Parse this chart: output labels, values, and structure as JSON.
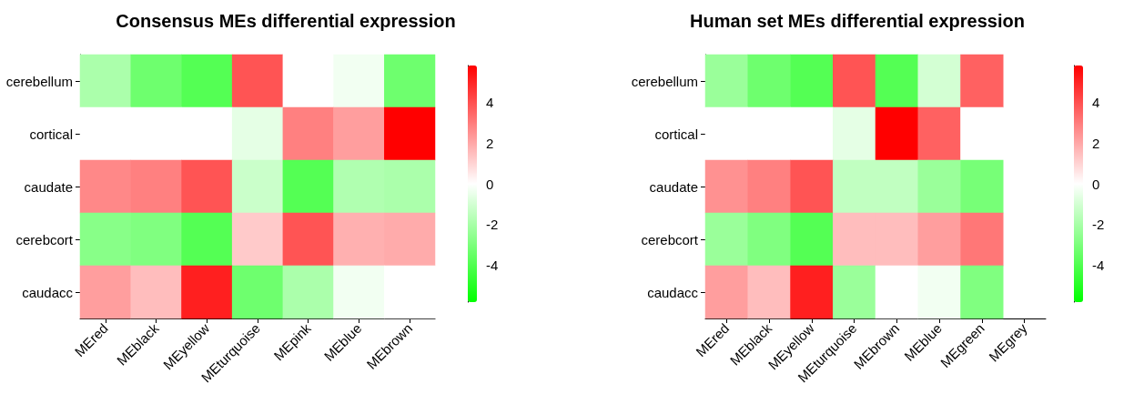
{
  "chart_data": [
    {
      "type": "heatmap",
      "title": "Consensus MEs differential expression",
      "categories": [
        "MEred",
        "MEblack",
        "MEyellow",
        "MEturquoise",
        "MEpink",
        "MEblue",
        "MEbrown"
      ],
      "y_categories": [
        "cerebellum",
        "cortical",
        "caudate",
        "cerebcort",
        "caudacc"
      ],
      "cells": [
        [
          -1.9,
          -3.3,
          -3.9,
          3.9,
          0,
          -0.3,
          -3.3
        ],
        [
          0,
          0,
          0,
          -0.6,
          2.9,
          2.2,
          5.8
        ],
        [
          2.7,
          2.9,
          3.9,
          -1.2,
          -3.9,
          -1.8,
          -1.9
        ],
        [
          -2.7,
          -2.9,
          -3.9,
          1.2,
          3.9,
          1.8,
          1.9
        ],
        [
          2.2,
          1.5,
          5.1,
          -3.3,
          -1.9,
          -0.3,
          0
        ]
      ],
      "clim": [
        -5.8,
        5.8
      ],
      "cticks": [
        -4,
        -2,
        0,
        2,
        4
      ]
    },
    {
      "type": "heatmap",
      "title": "Human set MEs differential expression",
      "categories": [
        "MEred",
        "MEblack",
        "MEyellow",
        "MEturquoise",
        "MEbrown",
        "MEblue",
        "MEgreen",
        "MEgrey"
      ],
      "y_categories": [
        "cerebellum",
        "cortical",
        "caudate",
        "cerebcort",
        "caudacc"
      ],
      "cells": [
        [
          -2.3,
          -3.3,
          -3.9,
          3.9,
          -3.9,
          -1.0,
          3.6,
          null
        ],
        [
          0,
          0,
          0,
          -0.6,
          5.8,
          3.6,
          0,
          null
        ],
        [
          2.5,
          2.9,
          3.9,
          -1.4,
          -1.4,
          -2.3,
          -3.1,
          null
        ],
        [
          -2.3,
          -2.9,
          -3.9,
          1.5,
          1.5,
          2.2,
          3.1,
          null
        ],
        [
          2.2,
          1.5,
          5.1,
          -2.3,
          0,
          -0.3,
          -2.9,
          null
        ]
      ],
      "clim": [
        -5.8,
        5.8
      ],
      "cticks": [
        -4,
        -2,
        0,
        2,
        4
      ]
    }
  ]
}
